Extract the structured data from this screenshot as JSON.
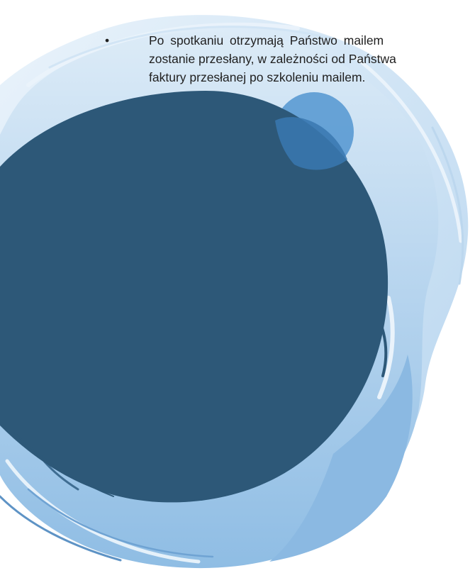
{
  "document": {
    "bullet_symbol": "•",
    "bullet_lines": [
      "Po spotkaniu otrzymają Państwo mailem",
      "zostanie przesłany, w zależności od Państwa",
      "faktury przesłanej po szkoleniu mailem."
    ]
  },
  "colors": {
    "dark_circle": "#2d5878",
    "brush_light": "#c7ddf0",
    "brush_mid": "#9dc5e7",
    "brush_deep": "#7fb0dc",
    "small_circle": "#4a8cc8",
    "text": "#1f1f1f"
  }
}
